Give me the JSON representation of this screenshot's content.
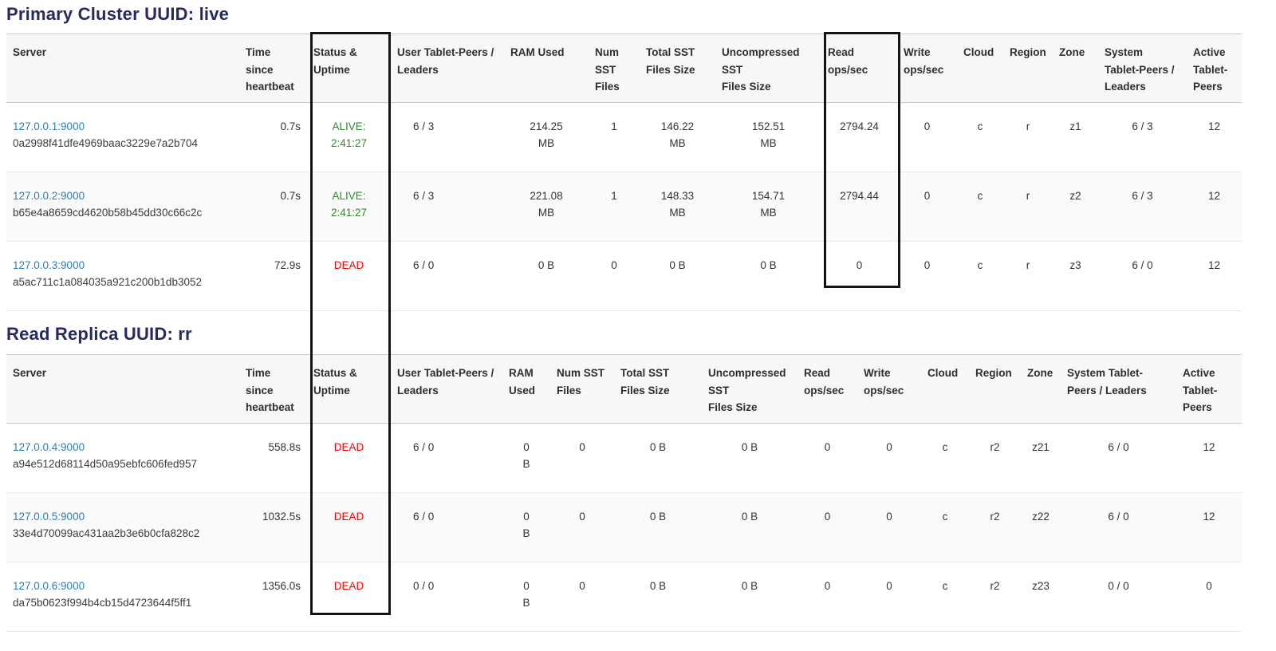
{
  "colors": {
    "title_navy": "#252a60",
    "link_blue": "#2c7cb8",
    "alive_green": "#2b8a2b",
    "dead_red": "#f50000",
    "annotation_black": "#141414",
    "header_bg": "#f7f7f7"
  },
  "tables": [
    {
      "title": "Primary Cluster UUID: live",
      "headers": [
        "Server",
        "Time since heartbeat",
        "Status & Uptime",
        "User Tablet-Peers / Leaders",
        "RAM Used",
        "Num SST Files",
        "Total SST Files Size",
        "Uncompressed SST Files Size",
        "Read ops/sec",
        "Write ops/sec",
        "Cloud",
        "Region",
        "Zone",
        "System Tablet-Peers / Leaders",
        "Active Tablet-Peers"
      ],
      "rows": [
        {
          "server": "127.0.0.1:9000",
          "uuid": "0a2998f41dfe4969baac3229e7a2b704",
          "heartbeat": "0.7s",
          "status": "ALIVE:",
          "uptime": "2:41:27",
          "state": "alive",
          "user_tablet_peers": "6 / 3",
          "ram_used": "214.25 MB",
          "num_sst": "1",
          "total_sst": "146.22 MB",
          "uncompressed_sst": "152.51 MB",
          "read_ops": "2794.24",
          "write_ops": "0",
          "cloud": "c",
          "region": "r",
          "zone": "z1",
          "system_tablet_peers": "6 / 3",
          "active_tablet_peers": "12"
        },
        {
          "server": "127.0.0.2:9000",
          "uuid": "b65e4a8659cd4620b58b45dd30c66c2c",
          "heartbeat": "0.7s",
          "status": "ALIVE:",
          "uptime": "2:41:27",
          "state": "alive",
          "user_tablet_peers": "6 / 3",
          "ram_used": "221.08 MB",
          "num_sst": "1",
          "total_sst": "148.33 MB",
          "uncompressed_sst": "154.71 MB",
          "read_ops": "2794.44",
          "write_ops": "0",
          "cloud": "c",
          "region": "r",
          "zone": "z2",
          "system_tablet_peers": "6 / 3",
          "active_tablet_peers": "12"
        },
        {
          "server": "127.0.0.3:9000",
          "uuid": "a5ac711c1a084035a921c200b1db3052",
          "heartbeat": "72.9s",
          "status": "DEAD",
          "uptime": "",
          "state": "dead",
          "user_tablet_peers": "6 / 0",
          "ram_used": "0 B",
          "num_sst": "0",
          "total_sst": "0 B",
          "uncompressed_sst": "0 B",
          "read_ops": "0",
          "write_ops": "0",
          "cloud": "c",
          "region": "r",
          "zone": "z3",
          "system_tablet_peers": "6 / 0",
          "active_tablet_peers": "12"
        }
      ]
    },
    {
      "title": "Read Replica UUID: rr",
      "headers": [
        "Server",
        "Time since heartbeat",
        "Status & Uptime",
        "User Tablet-Peers / Leaders",
        "RAM Used",
        "Num SST Files",
        "Total SST Files Size",
        "Uncompressed SST Files Size",
        "Read ops/sec",
        "Write ops/sec",
        "Cloud",
        "Region",
        "Zone",
        "System Tablet-Peers / Leaders",
        "Active Tablet-Peers"
      ],
      "rows": [
        {
          "server": "127.0.0.4:9000",
          "uuid": "a94e512d68114d50a95ebfc606fed957",
          "heartbeat": "558.8s",
          "status": "DEAD",
          "uptime": "",
          "state": "dead",
          "user_tablet_peers": "6 / 0",
          "ram_used": "0 B",
          "num_sst": "0",
          "total_sst": "0 B",
          "uncompressed_sst": "0 B",
          "read_ops": "0",
          "write_ops": "0",
          "cloud": "c",
          "region": "r2",
          "zone": "z21",
          "system_tablet_peers": "6 / 0",
          "active_tablet_peers": "12"
        },
        {
          "server": "127.0.0.5:9000",
          "uuid": "33e4d70099ac431aa2b3e6b0cfa828c2",
          "heartbeat": "1032.5s",
          "status": "DEAD",
          "uptime": "",
          "state": "dead",
          "user_tablet_peers": "6 / 0",
          "ram_used": "0 B",
          "num_sst": "0",
          "total_sst": "0 B",
          "uncompressed_sst": "0 B",
          "read_ops": "0",
          "write_ops": "0",
          "cloud": "c",
          "region": "r2",
          "zone": "z22",
          "system_tablet_peers": "6 / 0",
          "active_tablet_peers": "12"
        },
        {
          "server": "127.0.0.6:9000",
          "uuid": "da75b0623f994b4cb15d4723644f5ff1",
          "heartbeat": "1356.0s",
          "status": "DEAD",
          "uptime": "",
          "state": "dead",
          "user_tablet_peers": "0 / 0",
          "ram_used": "0 B",
          "num_sst": "0",
          "total_sst": "0 B",
          "uncompressed_sst": "0 B",
          "read_ops": "0",
          "write_ops": "0",
          "cloud": "c",
          "region": "r2",
          "zone": "z23",
          "system_tablet_peers": "0 / 0",
          "active_tablet_peers": "0"
        }
      ]
    }
  ]
}
